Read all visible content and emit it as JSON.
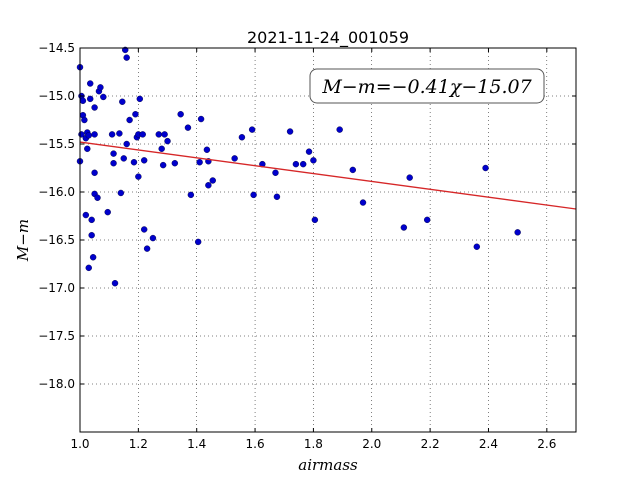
{
  "chart_data": {
    "type": "scatter",
    "title": "2021-11-24_001059",
    "xlabel": "airmass",
    "ylabel": "M−m",
    "xlim": [
      1.0,
      2.7
    ],
    "ylim": [
      -14.5,
      -18.5
    ],
    "y_inverted": true,
    "grid": true,
    "x_ticks": [
      "1.0",
      "1.2",
      "1.4",
      "1.6",
      "1.8",
      "2.0",
      "2.2",
      "2.4",
      "2.6"
    ],
    "y_ticks": [
      "−14.5",
      "−15.0",
      "−15.5",
      "−16.0",
      "−16.5",
      "−17.0",
      "−17.5",
      "−18.0"
    ],
    "annotation": "M−m=−0.41χ−15.07",
    "fit": {
      "slope": -0.41,
      "intercept": -15.07,
      "x_range": [
        1.0,
        2.7
      ],
      "color": "#d62728"
    },
    "point_color": "#0000cc",
    "points": [
      [
        1.0,
        -14.7
      ],
      [
        1.005,
        -15.0
      ],
      [
        1.005,
        -15.4
      ],
      [
        1.0,
        -15.68
      ],
      [
        1.01,
        -15.05
      ],
      [
        1.01,
        -15.2
      ],
      [
        1.015,
        -15.25
      ],
      [
        1.02,
        -15.44
      ],
      [
        1.02,
        -16.24
      ],
      [
        1.025,
        -15.38
      ],
      [
        1.025,
        -15.55
      ],
      [
        1.03,
        -15.41
      ],
      [
        1.03,
        -16.79
      ],
      [
        1.035,
        -14.87
      ],
      [
        1.035,
        -15.03
      ],
      [
        1.04,
        -16.29
      ],
      [
        1.04,
        -16.45
      ],
      [
        1.045,
        -16.68
      ],
      [
        1.05,
        -15.12
      ],
      [
        1.05,
        -15.4
      ],
      [
        1.05,
        -15.8
      ],
      [
        1.05,
        -16.02
      ],
      [
        1.06,
        -16.06
      ],
      [
        1.065,
        -14.95
      ],
      [
        1.07,
        -14.91
      ],
      [
        1.08,
        -15.01
      ],
      [
        1.095,
        -16.21
      ],
      [
        1.11,
        -15.4
      ],
      [
        1.115,
        -15.6
      ],
      [
        1.115,
        -15.7
      ],
      [
        1.12,
        -16.95
      ],
      [
        1.135,
        -15.39
      ],
      [
        1.14,
        -16.01
      ],
      [
        1.145,
        -15.06
      ],
      [
        1.15,
        -15.65
      ],
      [
        1.155,
        -14.52
      ],
      [
        1.16,
        -14.6
      ],
      [
        1.16,
        -15.5
      ],
      [
        1.17,
        -15.25
      ],
      [
        1.185,
        -15.69
      ],
      [
        1.19,
        -15.19
      ],
      [
        1.195,
        -15.43
      ],
      [
        1.2,
        -15.4
      ],
      [
        1.2,
        -15.84
      ],
      [
        1.205,
        -15.03
      ],
      [
        1.215,
        -15.4
      ],
      [
        1.22,
        -15.67
      ],
      [
        1.22,
        -16.39
      ],
      [
        1.23,
        -16.59
      ],
      [
        1.25,
        -16.48
      ],
      [
        1.27,
        -15.4
      ],
      [
        1.28,
        -15.55
      ],
      [
        1.285,
        -15.72
      ],
      [
        1.29,
        -15.4
      ],
      [
        1.3,
        -15.47
      ],
      [
        1.325,
        -15.7
      ],
      [
        1.345,
        -15.19
      ],
      [
        1.37,
        -15.33
      ],
      [
        1.38,
        -16.03
      ],
      [
        1.405,
        -16.52
      ],
      [
        1.41,
        -15.69
      ],
      [
        1.415,
        -15.24
      ],
      [
        1.435,
        -15.56
      ],
      [
        1.44,
        -15.93
      ],
      [
        1.44,
        -15.68
      ],
      [
        1.455,
        -15.88
      ],
      [
        1.53,
        -15.65
      ],
      [
        1.555,
        -15.43
      ],
      [
        1.59,
        -15.35
      ],
      [
        1.595,
        -16.03
      ],
      [
        1.625,
        -15.71
      ],
      [
        1.67,
        -15.8
      ],
      [
        1.675,
        -16.05
      ],
      [
        1.72,
        -15.37
      ],
      [
        1.74,
        -15.71
      ],
      [
        1.765,
        -15.71
      ],
      [
        1.785,
        -15.58
      ],
      [
        1.8,
        -15.67
      ],
      [
        1.805,
        -16.29
      ],
      [
        1.89,
        -15.35
      ],
      [
        1.935,
        -15.77
      ],
      [
        1.97,
        -16.11
      ],
      [
        2.11,
        -16.37
      ],
      [
        2.13,
        -15.85
      ],
      [
        2.19,
        -16.29
      ],
      [
        2.36,
        -16.57
      ],
      [
        2.39,
        -15.75
      ],
      [
        2.5,
        -16.42
      ]
    ]
  }
}
